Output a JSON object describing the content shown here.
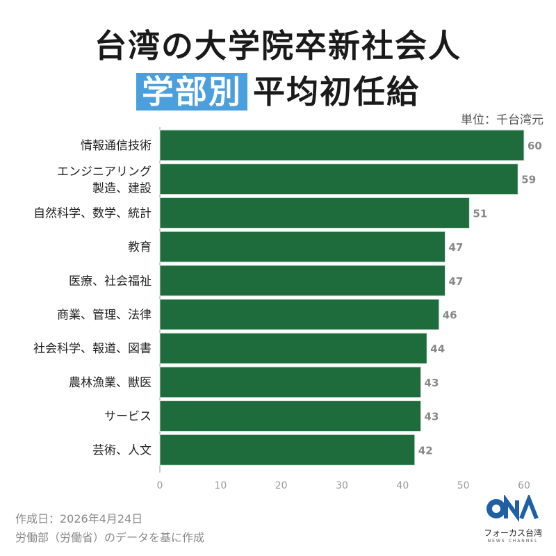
{
  "header": {
    "title_line1": "台湾の大学院卒新社会人",
    "title_highlight": "学部別",
    "title_line2_rest": "平均初任給",
    "unit": "単位：千台湾元"
  },
  "footer": {
    "date": "作成日：2026年4月24日",
    "source": "労働部（労働省）のデータを基に作成"
  },
  "logo": {
    "brand": "CNA",
    "name": "フォーカス台湾",
    "sub": "NEWS CHANNEL"
  },
  "colors": {
    "bar": "#1e6b3c",
    "highlight": "#4a9fdc"
  },
  "chart_data": {
    "type": "bar",
    "orientation": "horizontal",
    "categories": [
      "情報通信技術",
      "エンジニアリング\n製造、建設",
      "自然科学、数学、統計",
      "教育",
      "医療、社会福祉",
      "商業、管理、法律",
      "社会科学、報道、図書",
      "農林漁業、獣医",
      "サービス",
      "芸術、人文"
    ],
    "values": [
      60,
      59,
      51,
      47,
      47,
      46,
      44,
      43,
      43,
      42
    ],
    "xlim": [
      0,
      60
    ],
    "xticks": [
      0,
      10,
      20,
      30,
      40,
      50,
      60
    ],
    "title": "台湾の大学院卒新社会人 学部別 平均初任給",
    "unit": "単位：千台湾元",
    "grid": false
  }
}
